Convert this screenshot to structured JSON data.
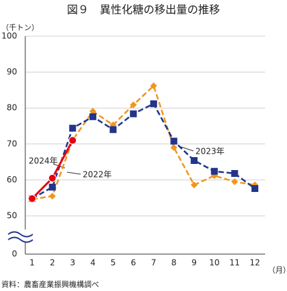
{
  "chart_data": {
    "type": "line",
    "title": "図９　異性化糖の移出量の推移",
    "y_label": "（千トン）",
    "x_label": "（月）",
    "source": "資料：農畜産業振興機構調べ",
    "categories": [
      "1",
      "2",
      "3",
      "4",
      "5",
      "6",
      "7",
      "8",
      "9",
      "10",
      "11",
      "12"
    ],
    "series": [
      {
        "name": "2022年",
        "color": "#f0961e",
        "marker": "diamond",
        "dash": true,
        "values": [
          54.6,
          55.5,
          71.1,
          79.1,
          75.3,
          80.9,
          86.2,
          69.0,
          58.6,
          61.2,
          59.5,
          58.6
        ]
      },
      {
        "name": "2023年",
        "color": "#22358c",
        "marker": "square",
        "dash": true,
        "values": [
          54.8,
          58.0,
          74.4,
          77.6,
          74.0,
          78.4,
          81.2,
          70.8,
          65.4,
          62.4,
          61.8,
          57.6
        ]
      },
      {
        "name": "2024年",
        "color": "#e60012",
        "marker": "circle",
        "dash": false,
        "values": [
          54.8,
          60.5,
          71.0,
          null,
          null,
          null,
          null,
          null,
          null,
          null,
          null,
          null
        ]
      }
    ],
    "ylim": [
      0,
      100
    ],
    "axis_break": [
      0,
      50
    ],
    "yticks": [
      0,
      50,
      60,
      70,
      80,
      90,
      100
    ],
    "grid": true
  }
}
